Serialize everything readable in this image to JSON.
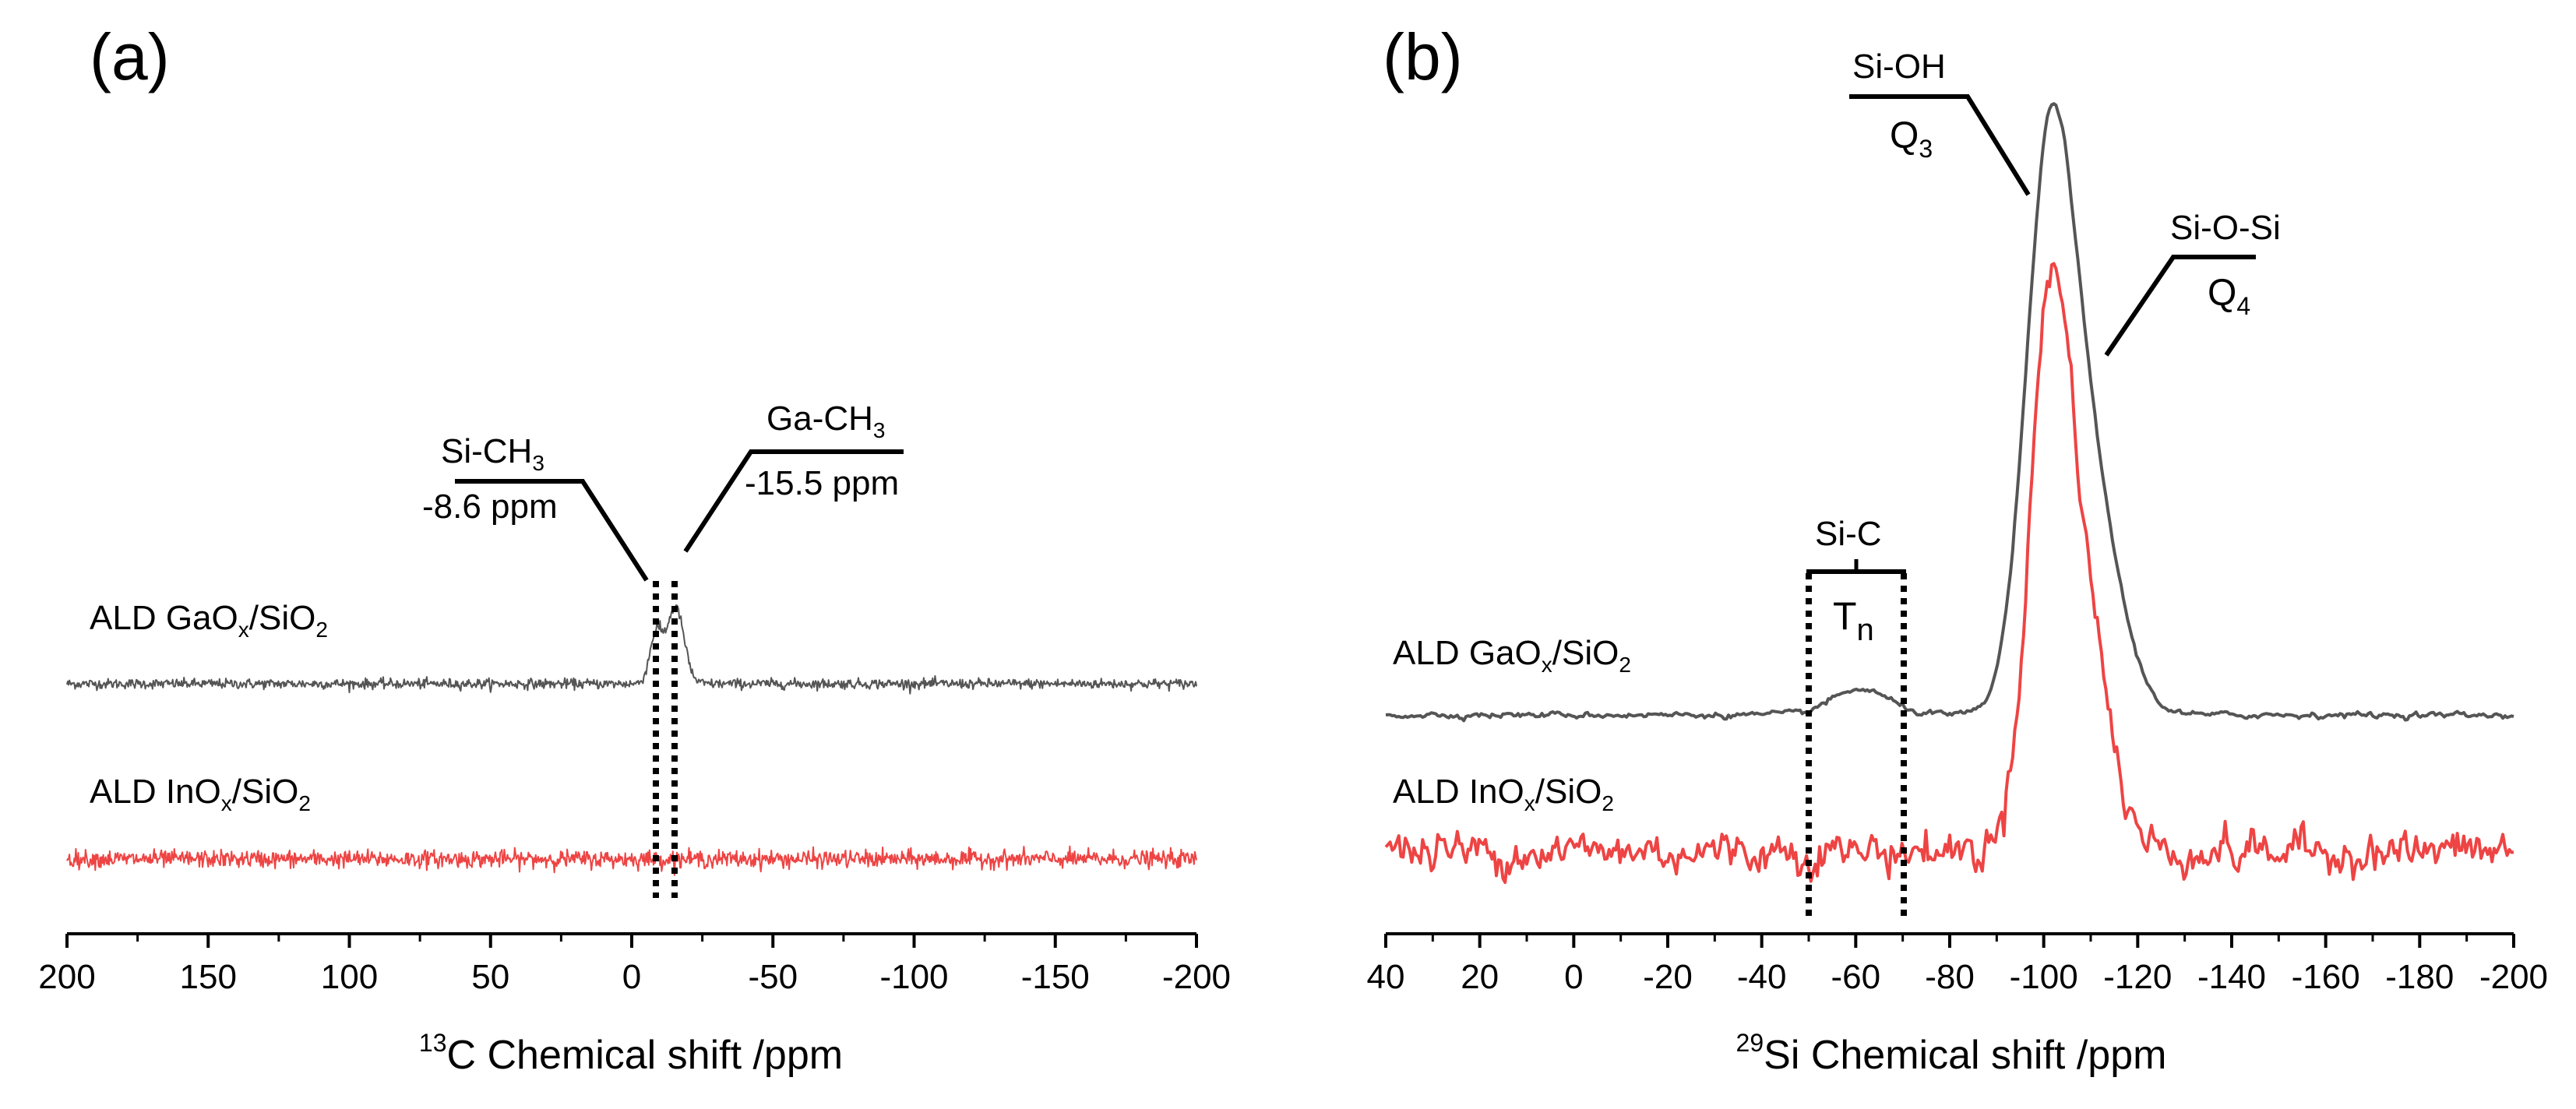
{
  "chart_data": [
    {
      "type": "line",
      "panel_label": "(a)",
      "xlabel_sup": "13",
      "xlabel_rest": "C Chemical shift /ppm",
      "xlim": [
        200,
        -200
      ],
      "xticks": [
        200,
        150,
        100,
        50,
        0,
        -50,
        -100,
        -150,
        -200
      ],
      "tick_labels": [
        "200",
        "150",
        "100",
        "50",
        "0",
        "-50",
        "-100",
        "-150",
        "-200"
      ],
      "series": [
        {
          "name": "ALD GaOx/SiO2",
          "label_parts": [
            "ALD GaO",
            "x",
            "/SiO",
            "2"
          ],
          "color": "#555555",
          "noise_std": 0.055,
          "peaks": [
            {
              "center": -8.6,
              "height": 1.1,
              "width": 2.2
            },
            {
              "center": -15.5,
              "height": 1.7,
              "width": 3.0
            }
          ]
        },
        {
          "name": "ALD InOx/SiO2",
          "label_parts": [
            "ALD InO",
            "x",
            "/SiO",
            "2"
          ],
          "color": "#ee4444",
          "noise_std": 0.095,
          "peaks": []
        }
      ],
      "annotations": [
        {
          "name": "Si-CH3",
          "label_parts": [
            "Si-CH",
            "3"
          ],
          "shift_label": "-8.6 ppm",
          "ppm": -8.6
        },
        {
          "name": "Ga-CH3",
          "label_parts": [
            "Ga-CH",
            "3"
          ],
          "shift_label": "-15.5 ppm",
          "ppm": -15.5
        }
      ]
    },
    {
      "type": "line",
      "panel_label": "(b)",
      "xlabel_sup": "29",
      "xlabel_rest": "Si Chemical shift /ppm",
      "xlim": [
        40,
        -200
      ],
      "xticks": [
        40,
        20,
        0,
        -20,
        -40,
        -60,
        -80,
        -100,
        -120,
        -140,
        -160,
        -180,
        -200
      ],
      "tick_labels": [
        "40",
        "20",
        "0",
        "-20",
        "-40",
        "-60",
        "-80",
        "-100",
        "-120",
        "-140",
        "-160",
        "-180",
        "-200"
      ],
      "series": [
        {
          "name": "ALD GaOx/SiO2",
          "label_parts": [
            "ALD GaO",
            "x",
            "/SiO",
            "2"
          ],
          "color": "#555555",
          "noise_std": 0.025,
          "peaks": [
            {
              "center": -101,
              "height": 8.6,
              "width": 5.0
            },
            {
              "center": -109,
              "height": 4.2,
              "width": 6.5
            },
            {
              "center": -61,
              "height": 0.45,
              "width": 6.0
            }
          ]
        },
        {
          "name": "ALD InOx/SiO2",
          "label_parts": [
            "ALD InO",
            "x",
            "/SiO",
            "2"
          ],
          "color": "#ee4444",
          "noise_std": 0.18,
          "peaks": [
            {
              "center": -101,
              "height": 8.2,
              "width": 4.3
            },
            {
              "center": -108,
              "height": 4.2,
              "width": 5.5
            }
          ]
        }
      ],
      "annotations": [
        {
          "name": "Si-OH",
          "label": "Si-OH",
          "q_main": "Q",
          "q_sub": "3",
          "ppm": -101
        },
        {
          "name": "Si-O-Si",
          "label": "Si-O-Si",
          "q_main": "Q",
          "q_sub": "4",
          "ppm": -110
        },
        {
          "name": "Si-C",
          "label": "Si-C",
          "t_main": "T",
          "t_sub": "n",
          "range": [
            -50,
            -70
          ]
        }
      ]
    }
  ]
}
